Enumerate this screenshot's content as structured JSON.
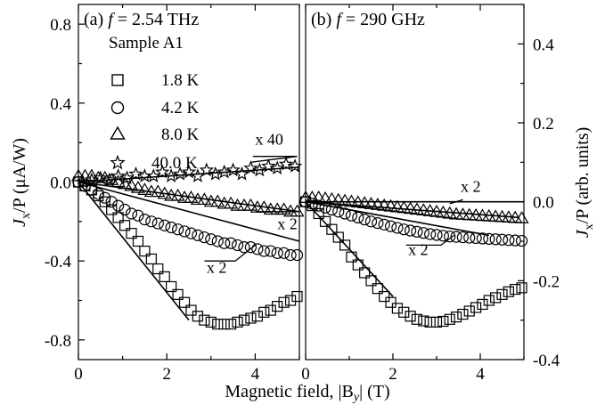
{
  "chart_data": [
    {
      "type": "scatter",
      "panel_label": "(a) ",
      "title_var": "f",
      "title_value": " = 2.54 THz",
      "sample_label": "Sample A1",
      "xlabel": "Magnetic field, |B",
      "xlabel_sub": "y",
      "xlabel_end": "| (T)",
      "ylabel_parts": [
        "J",
        "x",
        "/P (μA/W)"
      ],
      "xlim": [
        0,
        5
      ],
      "ylim": [
        -0.9,
        0.9
      ],
      "xticks": [
        0,
        2,
        4
      ],
      "yticks": [
        0.8,
        0.4,
        0.0,
        -0.4,
        -0.8
      ],
      "ytick_labels": [
        "0.8",
        "0.4",
        "0.0",
        "-0.4",
        "-0.8"
      ],
      "series": [
        {
          "name": "1.8 K",
          "marker": "square",
          "x": [
            0,
            0.15,
            0.3,
            0.45,
            0.6,
            0.75,
            0.9,
            1.05,
            1.2,
            1.35,
            1.5,
            1.65,
            1.8,
            1.95,
            2.1,
            2.25,
            2.4,
            2.55,
            2.7,
            2.85,
            3.0,
            3.15,
            3.3,
            3.45,
            3.6,
            3.75,
            3.9,
            4.05,
            4.2,
            4.35,
            4.5,
            4.65,
            4.8,
            4.95
          ],
          "y": [
            0,
            -0.02,
            -0.04,
            -0.07,
            -0.1,
            -0.14,
            -0.18,
            -0.22,
            -0.26,
            -0.3,
            -0.35,
            -0.39,
            -0.44,
            -0.48,
            -0.53,
            -0.57,
            -0.61,
            -0.65,
            -0.68,
            -0.7,
            -0.71,
            -0.72,
            -0.72,
            -0.72,
            -0.71,
            -0.7,
            -0.69,
            -0.68,
            -0.66,
            -0.65,
            -0.63,
            -0.61,
            -0.6,
            -0.58
          ]
        },
        {
          "name": "4.2 K",
          "marker": "circle",
          "x": [
            0,
            0.15,
            0.3,
            0.45,
            0.6,
            0.75,
            0.9,
            1.05,
            1.2,
            1.35,
            1.5,
            1.65,
            1.8,
            1.95,
            2.1,
            2.25,
            2.4,
            2.55,
            2.7,
            2.85,
            3.0,
            3.15,
            3.3,
            3.45,
            3.6,
            3.75,
            3.9,
            4.05,
            4.2,
            4.35,
            4.5,
            4.65,
            4.8,
            4.95
          ],
          "y": [
            0,
            -0.02,
            -0.04,
            -0.06,
            -0.08,
            -0.1,
            -0.12,
            -0.14,
            -0.16,
            -0.17,
            -0.19,
            -0.2,
            -0.21,
            -0.22,
            -0.23,
            -0.24,
            -0.25,
            -0.26,
            -0.27,
            -0.28,
            -0.29,
            -0.3,
            -0.31,
            -0.31,
            -0.32,
            -0.33,
            -0.33,
            -0.34,
            -0.35,
            -0.35,
            -0.36,
            -0.36,
            -0.37,
            -0.37
          ]
        },
        {
          "name": "8.0 K",
          "marker": "triangle",
          "x": [
            0,
            0.15,
            0.3,
            0.45,
            0.6,
            0.75,
            0.9,
            1.05,
            1.2,
            1.35,
            1.5,
            1.65,
            1.8,
            1.95,
            2.1,
            2.25,
            2.4,
            2.55,
            2.7,
            2.85,
            3.0,
            3.15,
            3.3,
            3.45,
            3.6,
            3.75,
            3.9,
            4.05,
            4.2,
            4.35,
            4.5,
            4.65,
            4.8,
            4.95
          ],
          "y": [
            0.03,
            0.03,
            0.03,
            0.02,
            0.02,
            0.01,
            0.0,
            -0.01,
            -0.02,
            -0.03,
            -0.04,
            -0.05,
            -0.05,
            -0.06,
            -0.07,
            -0.07,
            -0.08,
            -0.08,
            -0.09,
            -0.09,
            -0.1,
            -0.1,
            -0.11,
            -0.11,
            -0.12,
            -0.12,
            -0.12,
            -0.13,
            -0.13,
            -0.14,
            -0.14,
            -0.14,
            -0.15,
            -0.15
          ]
        },
        {
          "name": "40.0 K",
          "marker": "star",
          "x": [
            0.1,
            0.3,
            0.5,
            0.7,
            0.9,
            1.1,
            1.3,
            1.5,
            1.7,
            1.9,
            2.1,
            2.3,
            2.5,
            2.7,
            2.9,
            3.1,
            3.3,
            3.5,
            3.7,
            3.9,
            4.1,
            4.3,
            4.5,
            4.7,
            4.9
          ],
          "y": [
            0.0,
            0.01,
            0.02,
            0.01,
            0.03,
            0.02,
            0.04,
            0.03,
            0.03,
            0.05,
            0.03,
            0.04,
            0.05,
            0.03,
            0.06,
            0.04,
            0.05,
            0.06,
            0.04,
            0.07,
            0.06,
            0.08,
            0.07,
            0.09,
            0.08
          ]
        }
      ],
      "fit_lines": [
        {
          "x": [
            0,
            2.5
          ],
          "y": [
            0,
            -0.7
          ]
        },
        {
          "x": [
            0,
            5.0
          ],
          "y": [
            0,
            -0.3
          ]
        },
        {
          "x": [
            0,
            5.0
          ],
          "y": [
            0,
            -0.15
          ]
        },
        {
          "x": [
            0,
            5.0
          ],
          "y": [
            0,
            0.075
          ]
        }
      ],
      "annotations": [
        {
          "text": "x 40",
          "x": 4.0,
          "y": 0.19,
          "line": [
            [
              3.95,
              0.13
            ],
            [
              4.95,
              0.13
            ],
            [
              3.9,
              0.1
            ]
          ]
        },
        {
          "text": "x 2",
          "x": 4.5,
          "y": -0.24,
          "line": [
            [
              4.0,
              -0.15
            ],
            [
              4.95,
              -0.15
            ]
          ]
        },
        {
          "text": "x 2",
          "x": 2.9,
          "y": -0.46,
          "line": [
            [
              2.85,
              -0.4
            ],
            [
              3.55,
              -0.4
            ],
            [
              4.0,
              -0.32
            ]
          ]
        }
      ]
    },
    {
      "type": "scatter",
      "panel_label": "(b) ",
      "title_var": "f",
      "title_value": " = 290 GHz",
      "ylabel_parts": [
        "J",
        "x",
        "/P (arb. units)"
      ],
      "xlim": [
        0,
        5
      ],
      "ylim": [
        -0.4,
        0.5
      ],
      "xticks": [
        0,
        2,
        4
      ],
      "yticks": [
        0.4,
        0.2,
        0.0,
        -0.2,
        -0.4
      ],
      "ytick_labels": [
        "0.4",
        "0.2",
        "0.0",
        "-0.2",
        "-0.4"
      ],
      "series": [
        {
          "name": "1.8 K",
          "marker": "square",
          "x": [
            0,
            0.15,
            0.3,
            0.45,
            0.6,
            0.75,
            0.9,
            1.05,
            1.2,
            1.35,
            1.5,
            1.65,
            1.8,
            1.95,
            2.1,
            2.25,
            2.4,
            2.55,
            2.7,
            2.85,
            3.0,
            3.15,
            3.3,
            3.45,
            3.6,
            3.75,
            3.9,
            4.05,
            4.2,
            4.35,
            4.5,
            4.65,
            4.8,
            4.95
          ],
          "y": [
            0,
            -0.01,
            -0.03,
            -0.05,
            -0.07,
            -0.09,
            -0.11,
            -0.14,
            -0.16,
            -0.18,
            -0.2,
            -0.22,
            -0.24,
            -0.255,
            -0.27,
            -0.28,
            -0.29,
            -0.298,
            -0.302,
            -0.305,
            -0.305,
            -0.303,
            -0.298,
            -0.292,
            -0.285,
            -0.277,
            -0.268,
            -0.26,
            -0.25,
            -0.243,
            -0.235,
            -0.228,
            -0.222,
            -0.218
          ]
        },
        {
          "name": "4.2 K",
          "marker": "circle",
          "x": [
            0,
            0.15,
            0.3,
            0.45,
            0.6,
            0.75,
            0.9,
            1.05,
            1.2,
            1.35,
            1.5,
            1.65,
            1.8,
            1.95,
            2.1,
            2.25,
            2.4,
            2.55,
            2.7,
            2.85,
            3.0,
            3.15,
            3.3,
            3.45,
            3.6,
            3.75,
            3.9,
            4.05,
            4.2,
            4.35,
            4.5,
            4.65,
            4.8,
            4.95
          ],
          "y": [
            0,
            -0.005,
            -0.01,
            -0.015,
            -0.02,
            -0.025,
            -0.03,
            -0.035,
            -0.04,
            -0.045,
            -0.05,
            -0.054,
            -0.058,
            -0.062,
            -0.066,
            -0.07,
            -0.073,
            -0.076,
            -0.079,
            -0.082,
            -0.084,
            -0.086,
            -0.088,
            -0.089,
            -0.09,
            -0.091,
            -0.092,
            -0.093,
            -0.094,
            -0.095,
            -0.096,
            -0.097,
            -0.098,
            -0.099
          ]
        },
        {
          "name": "8.0 K",
          "marker": "triangle",
          "x": [
            0,
            0.15,
            0.3,
            0.45,
            0.6,
            0.75,
            0.9,
            1.05,
            1.2,
            1.35,
            1.5,
            1.65,
            1.8,
            1.95,
            2.1,
            2.25,
            2.4,
            2.55,
            2.7,
            2.85,
            3.0,
            3.15,
            3.3,
            3.45,
            3.6,
            3.75,
            3.9,
            4.05,
            4.2,
            4.35,
            4.5,
            4.65,
            4.8,
            4.95
          ],
          "y": [
            0.01,
            0.01,
            0.01,
            0.008,
            0.006,
            0.004,
            0.002,
            0.0,
            -0.002,
            -0.004,
            -0.006,
            -0.008,
            -0.01,
            -0.012,
            -0.014,
            -0.016,
            -0.018,
            -0.02,
            -0.022,
            -0.024,
            -0.026,
            -0.028,
            -0.03,
            -0.032,
            -0.033,
            -0.034,
            -0.035,
            -0.036,
            -0.037,
            -0.038,
            -0.039,
            -0.04,
            -0.041,
            -0.042
          ]
        }
      ],
      "fit_lines": [
        {
          "x": [
            0,
            2.0
          ],
          "y": [
            0,
            -0.24
          ]
        },
        {
          "x": [
            0,
            4.2
          ],
          "y": [
            0,
            -0.085
          ]
        },
        {
          "x": [
            0,
            4.9
          ],
          "y": [
            0,
            -0.04
          ]
        },
        {
          "x": [
            0,
            5.0
          ],
          "y": [
            0,
            0.0
          ]
        }
      ],
      "annotations": [
        {
          "text": "x 2",
          "x": 3.55,
          "y": 0.025,
          "line": [
            [
              3.3,
              -0.005
            ],
            [
              3.6,
              0.005
            ]
          ]
        },
        {
          "text": "x 2",
          "x": 2.35,
          "y": -0.135,
          "line": [
            [
              2.3,
              -0.11
            ],
            [
              3.1,
              -0.11
            ],
            [
              3.4,
              -0.085
            ]
          ]
        }
      ]
    }
  ]
}
